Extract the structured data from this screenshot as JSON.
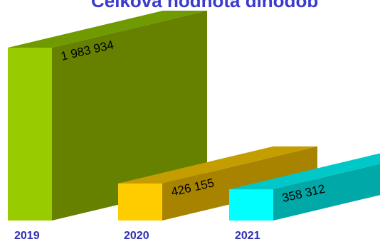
{
  "chart_data": {
    "type": "bar",
    "title": "Celková hodnota dlhodob",
    "categories": [
      "2019",
      "2020",
      "2021"
    ],
    "values": [
      1983934,
      426155,
      358312
    ],
    "value_labels": [
      "1 983 934",
      "426 155",
      "358 312"
    ],
    "ylim": [
      0,
      2100000
    ],
    "grid": false,
    "legend": "none",
    "colors": {
      "2019": {
        "front": "#99cc00",
        "top": "#6f9a00",
        "side": "#668000"
      },
      "2020": {
        "front": "#ffcc00",
        "top": "#c49d00",
        "side": "#a88300"
      },
      "2021": {
        "front": "#00ffff",
        "top": "#00c8c8",
        "side": "#00a8a8"
      }
    }
  }
}
